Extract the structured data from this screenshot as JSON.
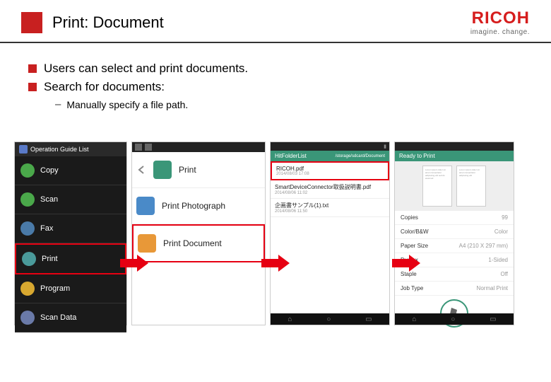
{
  "slide": {
    "title": "Print: Document",
    "logo": {
      "brand": "RICOH",
      "tagline": "imagine. change."
    }
  },
  "bullets": [
    "Users can select and print documents.",
    "Search for documents:"
  ],
  "sub_bullet": "Manually specify a file path.",
  "colors": {
    "accent": "#c82020",
    "ricoh_red": "#d61d1d",
    "highlight": "#e60012",
    "arrow": "#e60012",
    "teal": "#3a9678"
  },
  "screen1": {
    "header": "Operation Guide List",
    "items": [
      {
        "label": "Copy",
        "icon_color": "#4aa84a"
      },
      {
        "label": "Scan",
        "icon_color": "#4aa84a"
      },
      {
        "label": "Fax",
        "icon_color": "#4a7aa8"
      },
      {
        "label": "Print",
        "icon_color": "#4a9a9a",
        "highlight": true
      },
      {
        "label": "Program",
        "icon_color": "#d8a830"
      },
      {
        "label": "Scan Data",
        "icon_color": "#6a7aa8"
      }
    ]
  },
  "screen2": {
    "rows": [
      {
        "label": "Print",
        "icon_bg": "#3a9678",
        "back": true
      },
      {
        "label": "Print Photograph",
        "icon_bg": "#4a8ac8"
      },
      {
        "label": "Print Document",
        "icon_bg": "#e89838",
        "highlight": true
      }
    ]
  },
  "screen3": {
    "header_left": "HitFolderList",
    "header_right": "/storage/sdcard/Document",
    "files": [
      {
        "name": "RICOH.pdf",
        "date": "2014/08/03 17:08",
        "highlight": true
      },
      {
        "name": "SmartDeviceConnector取扱説明書.pdf",
        "date": "2014/08/06 11:02"
      },
      {
        "name": "企画書サンプル(1).txt",
        "date": "2014/08/06 11:50"
      }
    ]
  },
  "screen4": {
    "header": "Ready to Print",
    "settings": [
      {
        "k": "Copies",
        "v": "99"
      },
      {
        "k": "Color/B&W",
        "v": "Color"
      },
      {
        "k": "Paper Size",
        "v": "A4 (210 X 297 mm)"
      },
      {
        "k": "Duplex",
        "v": "1-Sided"
      },
      {
        "k": "Staple",
        "v": "Off"
      },
      {
        "k": "Job Type",
        "v": "Normal Print"
      }
    ]
  }
}
